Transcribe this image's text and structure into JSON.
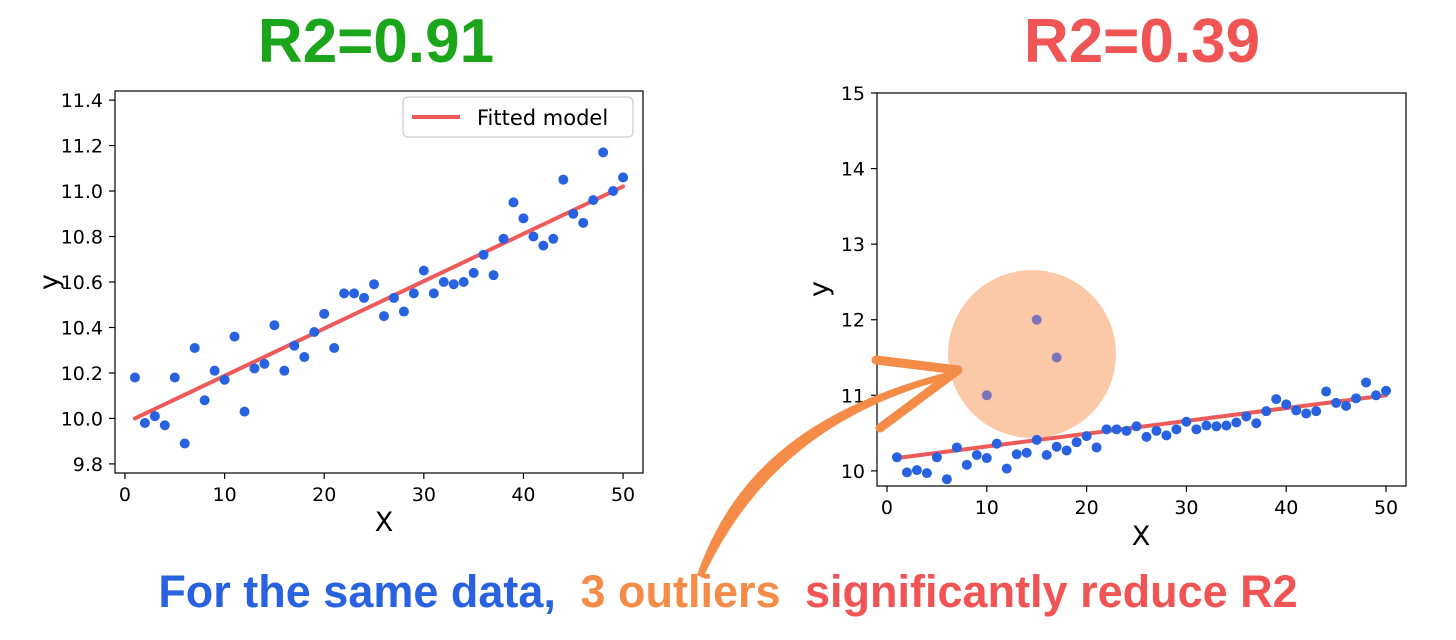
{
  "colors": {
    "good": "#1aa51a",
    "bad": "#f05454",
    "point": "#2962e0",
    "fit": "#ee5a5a",
    "outlier_point": "#7b74b8",
    "highlight": "#fbc9a8",
    "arrow": "#f48c47",
    "caption_blue": "#2962e0",
    "caption_orange": "#f48c47",
    "caption_red": "#f05454"
  },
  "caption": {
    "part1": "For the same data,",
    "part2": "3 outliers",
    "part3": "significantly reduce R2"
  },
  "annotation": {
    "shape": "circle-highlight",
    "arrow": "curved-arrow"
  },
  "chart_data": [
    {
      "type": "scatter",
      "title": "R2=0.91",
      "xlabel": "X",
      "ylabel": "y",
      "xlim": [
        -1,
        52
      ],
      "ylim": [
        9.76,
        11.44
      ],
      "xticks": [
        0,
        10,
        20,
        30,
        40,
        50
      ],
      "yticks": [
        9.8,
        10.0,
        10.2,
        10.4,
        10.6,
        10.8,
        11.0,
        11.2,
        11.4
      ],
      "ytick_labels": [
        "9.8",
        "10.0",
        "10.2",
        "10.4",
        "10.6",
        "10.8",
        "11.0",
        "11.2",
        "11.4"
      ],
      "legend": {
        "position": "top-right",
        "label": "Fitted model"
      },
      "x": [
        1,
        2,
        3,
        4,
        5,
        6,
        7,
        8,
        9,
        10,
        11,
        12,
        13,
        14,
        15,
        16,
        17,
        18,
        19,
        20,
        21,
        22,
        23,
        24,
        25,
        26,
        27,
        28,
        29,
        30,
        31,
        32,
        33,
        34,
        35,
        36,
        37,
        38,
        39,
        40,
        41,
        42,
        43,
        44,
        45,
        46,
        47,
        48,
        49,
        50
      ],
      "y": [
        10.18,
        9.98,
        10.01,
        9.97,
        10.18,
        9.89,
        10.31,
        10.08,
        10.21,
        10.17,
        10.36,
        10.03,
        10.22,
        10.24,
        10.41,
        10.21,
        10.32,
        10.27,
        10.38,
        10.46,
        10.31,
        10.55,
        10.55,
        10.53,
        10.59,
        10.45,
        10.53,
        10.47,
        10.55,
        10.65,
        10.55,
        10.6,
        10.59,
        10.6,
        10.64,
        10.72,
        10.63,
        10.79,
        10.95,
        10.88,
        10.8,
        10.76,
        10.79,
        11.05,
        10.9,
        10.86,
        10.96,
        11.17,
        11.0,
        11.06
      ],
      "fit_line": {
        "x": [
          1,
          50
        ],
        "y": [
          10.0,
          11.02
        ]
      }
    },
    {
      "type": "scatter",
      "title": "R2=0.39",
      "xlabel": "X",
      "ylabel": "y",
      "xlim": [
        -1,
        52
      ],
      "ylim": [
        9.8,
        15.0
      ],
      "xticks": [
        0,
        10,
        20,
        30,
        40,
        50
      ],
      "yticks": [
        10,
        11,
        12,
        13,
        14,
        15
      ],
      "ytick_labels": [
        "10",
        "11",
        "12",
        "13",
        "14",
        "15"
      ],
      "x": [
        1,
        2,
        3,
        4,
        5,
        6,
        7,
        8,
        9,
        10,
        11,
        12,
        13,
        14,
        15,
        16,
        17,
        18,
        19,
        20,
        21,
        22,
        23,
        24,
        25,
        26,
        27,
        28,
        29,
        30,
        31,
        32,
        33,
        34,
        35,
        36,
        37,
        38,
        39,
        40,
        41,
        42,
        43,
        44,
        45,
        46,
        47,
        48,
        49,
        50
      ],
      "y": [
        10.18,
        9.98,
        10.01,
        9.97,
        10.18,
        9.89,
        10.31,
        10.08,
        10.21,
        10.17,
        10.36,
        10.03,
        10.22,
        10.24,
        10.41,
        10.21,
        10.32,
        10.27,
        10.38,
        10.46,
        10.31,
        10.55,
        10.55,
        10.53,
        10.59,
        10.45,
        10.53,
        10.47,
        10.55,
        10.65,
        10.55,
        10.6,
        10.59,
        10.6,
        10.64,
        10.72,
        10.63,
        10.79,
        10.95,
        10.88,
        10.8,
        10.76,
        10.79,
        11.05,
        10.9,
        10.86,
        10.96,
        11.17,
        11.0,
        11.06
      ],
      "outliers": {
        "x": [
          10,
          15,
          17
        ],
        "y": [
          11.0,
          12.0,
          11.5
        ]
      },
      "fit_line": {
        "x": [
          1,
          50
        ],
        "y": [
          10.17,
          11.0
        ]
      }
    }
  ]
}
